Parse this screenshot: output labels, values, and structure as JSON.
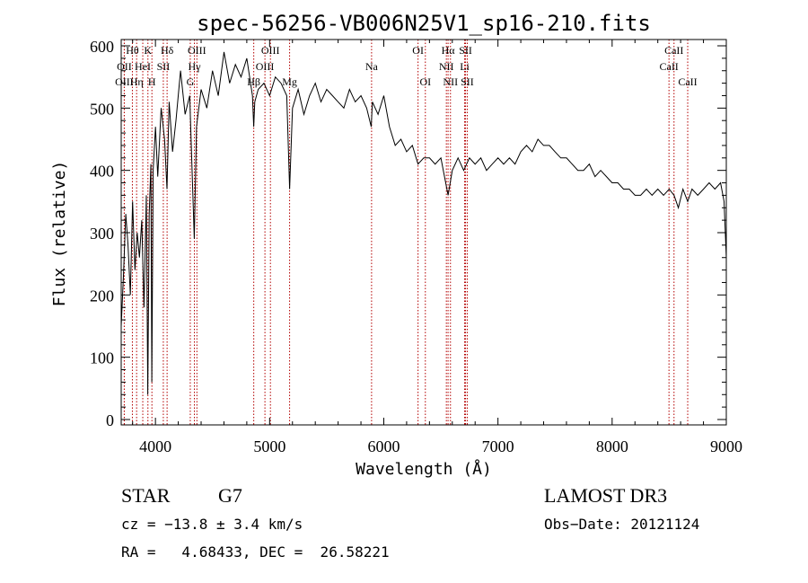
{
  "chart_data": {
    "type": "line",
    "title": "spec-56256-VB006N25V1_sp16-210.fits",
    "xlabel": "Wavelength (Å)",
    "ylabel": "Flux (relative)",
    "xlim": [
      3700,
      9000
    ],
    "ylim": [
      0,
      600
    ],
    "x_ticks": [
      "4000",
      "5000",
      "6000",
      "7000",
      "8000",
      "9000"
    ],
    "y_ticks": [
      "0",
      "100",
      "200",
      "300",
      "400",
      "500",
      "600"
    ],
    "grid": false,
    "line_color": "#000000",
    "marker_color": "#b30000",
    "spectrum": {
      "x": [
        3700,
        3720,
        3740,
        3760,
        3780,
        3800,
        3820,
        3840,
        3860,
        3880,
        3900,
        3920,
        3933,
        3945,
        3960,
        3968,
        3980,
        4000,
        4020,
        4050,
        4080,
        4101,
        4120,
        4150,
        4180,
        4220,
        4260,
        4300,
        4340,
        4360,
        4400,
        4450,
        4500,
        4550,
        4600,
        4650,
        4700,
        4750,
        4800,
        4850,
        4861,
        4870,
        4900,
        4950,
        5000,
        5050,
        5100,
        5150,
        5175,
        5200,
        5250,
        5300,
        5350,
        5400,
        5450,
        5500,
        5550,
        5600,
        5650,
        5700,
        5750,
        5800,
        5850,
        5890,
        5900,
        5950,
        6000,
        6050,
        6100,
        6150,
        6200,
        6250,
        6300,
        6350,
        6400,
        6450,
        6500,
        6563,
        6600,
        6650,
        6700,
        6750,
        6800,
        6850,
        6900,
        6950,
        7000,
        7050,
        7100,
        7150,
        7200,
        7250,
        7300,
        7350,
        7400,
        7450,
        7500,
        7550,
        7600,
        7650,
        7700,
        7750,
        7800,
        7850,
        7900,
        7950,
        8000,
        8050,
        8100,
        8150,
        8200,
        8250,
        8300,
        8350,
        8400,
        8450,
        8500,
        8542,
        8580,
        8620,
        8662,
        8700,
        8750,
        8800,
        8850,
        8900,
        8950,
        8980,
        9000
      ],
      "y": [
        150,
        230,
        330,
        280,
        200,
        350,
        240,
        300,
        260,
        320,
        180,
        360,
        40,
        330,
        410,
        60,
        400,
        470,
        390,
        500,
        450,
        370,
        510,
        430,
        480,
        560,
        490,
        520,
        290,
        470,
        530,
        500,
        560,
        520,
        590,
        540,
        570,
        550,
        580,
        520,
        470,
        510,
        530,
        540,
        520,
        550,
        540,
        520,
        370,
        500,
        530,
        490,
        520,
        540,
        510,
        530,
        520,
        510,
        500,
        530,
        510,
        520,
        500,
        470,
        510,
        490,
        520,
        470,
        440,
        450,
        430,
        440,
        410,
        420,
        420,
        410,
        420,
        360,
        400,
        420,
        400,
        420,
        410,
        420,
        400,
        410,
        420,
        410,
        420,
        410,
        430,
        440,
        430,
        450,
        440,
        440,
        430,
        420,
        420,
        410,
        400,
        400,
        410,
        390,
        400,
        390,
        380,
        380,
        370,
        370,
        360,
        360,
        370,
        360,
        370,
        360,
        370,
        360,
        340,
        370,
        350,
        370,
        360,
        370,
        380,
        370,
        380,
        350,
        260
      ]
    },
    "spectral_lines": [
      {
        "label": "Hθ",
        "wavelength": 3798,
        "row": 0
      },
      {
        "label": "OII",
        "wavelength": 3727,
        "row": 1
      },
      {
        "label": "OIII",
        "wavelength": 3727,
        "row": 2
      },
      {
        "label": "Hη",
        "wavelength": 3835,
        "row": 2
      },
      {
        "label": "HeI",
        "wavelength": 3889,
        "row": 1
      },
      {
        "label": "K",
        "wavelength": 3934,
        "row": 0
      },
      {
        "label": "H",
        "wavelength": 3969,
        "row": 2
      },
      {
        "label": "SII",
        "wavelength": 4069,
        "row": 1
      },
      {
        "label": "Hδ",
        "wavelength": 4102,
        "row": 0
      },
      {
        "label": "OIII",
        "wavelength": 4363,
        "row": 0
      },
      {
        "label": "Hγ",
        "wavelength": 4341,
        "row": 1
      },
      {
        "label": "G",
        "wavelength": 4305,
        "row": 2
      },
      {
        "label": "OIII",
        "wavelength": 5007,
        "row": 0
      },
      {
        "label": "OIII",
        "wavelength": 4959,
        "row": 1
      },
      {
        "label": "Hβ",
        "wavelength": 4861,
        "row": 2
      },
      {
        "label": "Mg",
        "wavelength": 5175,
        "row": 2
      },
      {
        "label": "Na",
        "wavelength": 5893,
        "row": 1
      },
      {
        "label": "OI",
        "wavelength": 6300,
        "row": 0
      },
      {
        "label": "OI",
        "wavelength": 6364,
        "row": 2
      },
      {
        "label": "Hα",
        "wavelength": 6563,
        "row": 0
      },
      {
        "label": "SII",
        "wavelength": 6716,
        "row": 0
      },
      {
        "label": "NII",
        "wavelength": 6548,
        "row": 1
      },
      {
        "label": "Li",
        "wavelength": 6708,
        "row": 1
      },
      {
        "label": "NII",
        "wavelength": 6584,
        "row": 2
      },
      {
        "label": "SII",
        "wavelength": 6731,
        "row": 2
      },
      {
        "label": "CaII",
        "wavelength": 8542,
        "row": 0
      },
      {
        "label": "CaII",
        "wavelength": 8498,
        "row": 1
      },
      {
        "label": "CaII",
        "wavelength": 8662,
        "row": 2
      }
    ]
  },
  "info": {
    "object_class": "STAR",
    "subclass": "G7",
    "survey": "LAMOST DR3",
    "redshift": "cz = −13.8 ± 3.4 km/s",
    "obs_date": "Obs−Date: 20121124",
    "coords": "RA =   4.68433, DEC =  26.58221"
  }
}
